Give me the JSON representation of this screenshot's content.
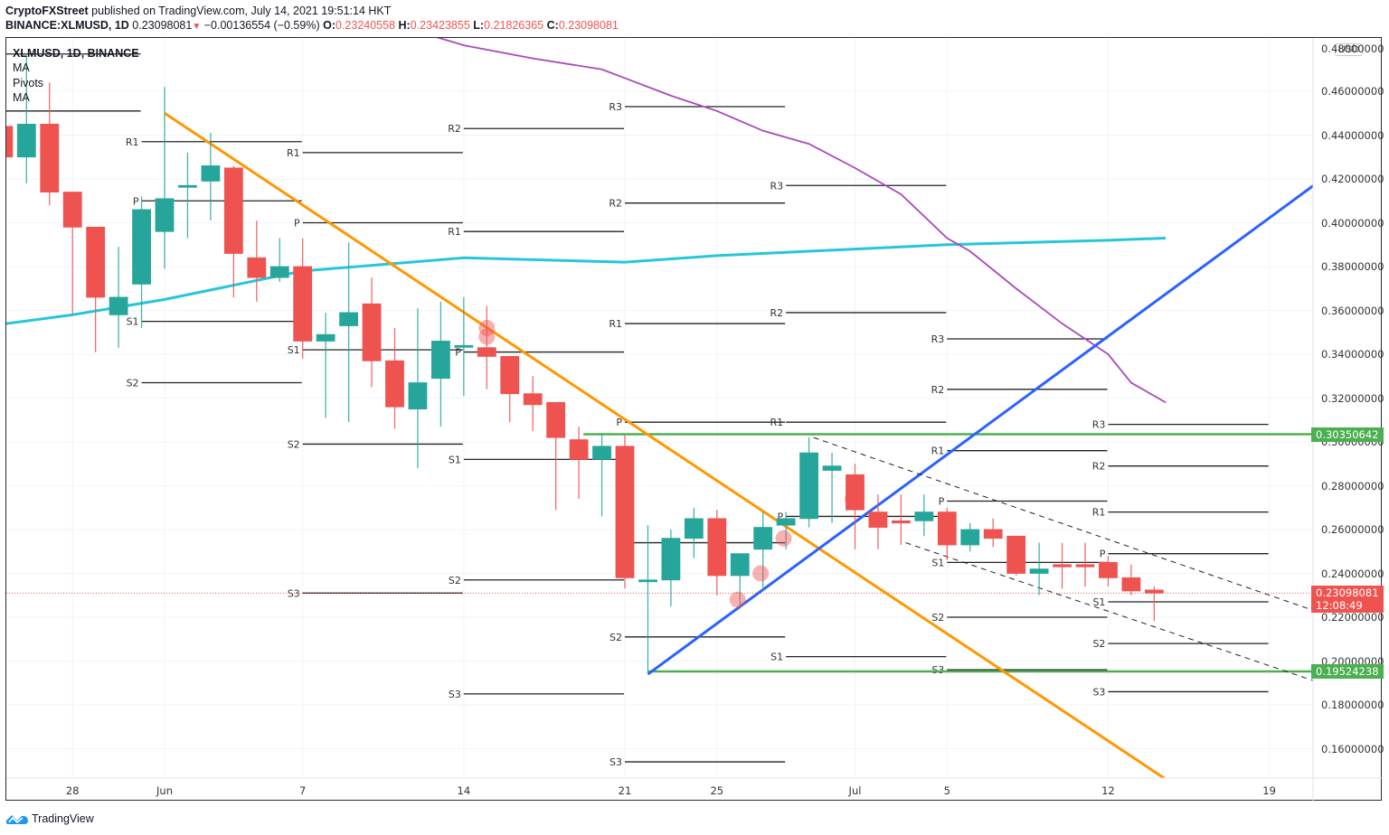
{
  "header": {
    "publisher": "CryptoFXStreet",
    "published_text": "published on TradingView.com, July 14, 2021 19:51:14 HKT",
    "symbol_line": "BINANCE:XLMUSD, 1D",
    "last_price": "0.23098081",
    "change": "−0.00136554 (−0.59%)",
    "open_label": "O:",
    "open": "0.23240558",
    "high_label": "H:",
    "high": "0.23423855",
    "low_label": "L:",
    "low": "0.21826365",
    "close_label": "C:",
    "close": "0.23098081"
  },
  "legend": {
    "title": "XLMUSD, 1D, BINANCE",
    "indicators": [
      "MA",
      "Pivots",
      "MA"
    ]
  },
  "currency_badge": "USD",
  "price_tags": {
    "resistance": "0.30350642",
    "support": "0.19524238",
    "current": "0.23098081",
    "countdown": "12:08:49"
  },
  "footer": {
    "brand": "TradingView"
  },
  "colors": {
    "up": "#26a69a",
    "down": "#ef5350",
    "ma_fast": "#26c6da",
    "ma_slow": "#ab47bc",
    "downtrend": "#ff9800",
    "uptrend": "#2962ff",
    "horizontal": "#4caf50",
    "grid": "#f0f3fa"
  },
  "chart_data": {
    "type": "candlestick",
    "title": "BINANCE:XLMUSD, 1D",
    "xlabel": "",
    "ylabel": "USD",
    "ylim": [
      0.148,
      0.486
    ],
    "grid": true,
    "y_ticks": [
      "0.46000000",
      "0.44000000",
      "0.42000000",
      "0.40000000",
      "0.38000000",
      "0.36000000",
      "0.34000000",
      "0.32000000",
      "0.30000000",
      "0.28000000",
      "0.26000000",
      "0.24000000",
      "0.22000000",
      "0.20000000",
      "0.18000000",
      "0.16000000"
    ],
    "x_ticks": [
      {
        "label": "28",
        "day": -4
      },
      {
        "label": "Jun",
        "day": 0
      },
      {
        "label": "7",
        "day": 6
      },
      {
        "label": "14",
        "day": 13
      },
      {
        "label": "21",
        "day": 20
      },
      {
        "label": "25",
        "day": 24
      },
      {
        "label": "Jul",
        "day": 30
      },
      {
        "label": "5",
        "day": 34
      },
      {
        "label": "12",
        "day": 41
      },
      {
        "label": "19",
        "day": 48
      }
    ],
    "candles": [
      {
        "day": -7,
        "o": 0.444,
        "h": 0.452,
        "l": 0.42,
        "c": 0.43
      },
      {
        "day": -6,
        "o": 0.43,
        "h": 0.476,
        "l": 0.418,
        "c": 0.445
      },
      {
        "day": -5,
        "o": 0.445,
        "h": 0.464,
        "l": 0.408,
        "c": 0.414
      },
      {
        "day": -4,
        "o": 0.414,
        "h": 0.404,
        "l": 0.358,
        "c": 0.398
      },
      {
        "day": -3,
        "o": 0.398,
        "h": 0.398,
        "l": 0.341,
        "c": 0.366
      },
      {
        "day": -2,
        "o": 0.358,
        "h": 0.389,
        "l": 0.343,
        "c": 0.366
      },
      {
        "day": -1,
        "o": 0.372,
        "h": 0.412,
        "l": 0.352,
        "c": 0.406
      },
      {
        "day": 0,
        "o": 0.396,
        "h": 0.462,
        "l": 0.379,
        "c": 0.411
      },
      {
        "day": 1,
        "o": 0.417,
        "h": 0.432,
        "l": 0.393,
        "c": 0.417
      },
      {
        "day": 2,
        "o": 0.419,
        "h": 0.441,
        "l": 0.401,
        "c": 0.426
      },
      {
        "day": 3,
        "o": 0.425,
        "h": 0.426,
        "l": 0.366,
        "c": 0.386
      },
      {
        "day": 4,
        "o": 0.384,
        "h": 0.401,
        "l": 0.364,
        "c": 0.375
      },
      {
        "day": 5,
        "o": 0.375,
        "h": 0.393,
        "l": 0.373,
        "c": 0.38
      },
      {
        "day": 6,
        "o": 0.38,
        "h": 0.393,
        "l": 0.338,
        "c": 0.346
      },
      {
        "day": 7,
        "o": 0.346,
        "h": 0.359,
        "l": 0.311,
        "c": 0.349
      },
      {
        "day": 8,
        "o": 0.353,
        "h": 0.391,
        "l": 0.309,
        "c": 0.359
      },
      {
        "day": 9,
        "o": 0.363,
        "h": 0.375,
        "l": 0.325,
        "c": 0.337
      },
      {
        "day": 10,
        "o": 0.337,
        "h": 0.352,
        "l": 0.306,
        "c": 0.316
      },
      {
        "day": 11,
        "o": 0.315,
        "h": 0.361,
        "l": 0.288,
        "c": 0.327
      },
      {
        "day": 12,
        "o": 0.329,
        "h": 0.364,
        "l": 0.307,
        "c": 0.346
      },
      {
        "day": 13,
        "o": 0.344,
        "h": 0.366,
        "l": 0.321,
        "c": 0.344
      },
      {
        "day": 14,
        "o": 0.343,
        "h": 0.362,
        "l": 0.324,
        "c": 0.339
      },
      {
        "day": 15,
        "o": 0.339,
        "h": 0.338,
        "l": 0.309,
        "c": 0.322
      },
      {
        "day": 16,
        "o": 0.322,
        "h": 0.33,
        "l": 0.305,
        "c": 0.317
      },
      {
        "day": 17,
        "o": 0.318,
        "h": 0.318,
        "l": 0.269,
        "c": 0.302
      },
      {
        "day": 18,
        "o": 0.301,
        "h": 0.307,
        "l": 0.274,
        "c": 0.292
      },
      {
        "day": 19,
        "o": 0.292,
        "h": 0.304,
        "l": 0.266,
        "c": 0.298
      },
      {
        "day": 20,
        "o": 0.298,
        "h": 0.303,
        "l": 0.233,
        "c": 0.238
      },
      {
        "day": 21,
        "o": 0.237,
        "h": 0.262,
        "l": 0.195,
        "c": 0.237
      },
      {
        "day": 22,
        "o": 0.237,
        "h": 0.26,
        "l": 0.225,
        "c": 0.256
      },
      {
        "day": 23,
        "o": 0.256,
        "h": 0.27,
        "l": 0.247,
        "c": 0.265
      },
      {
        "day": 24,
        "o": 0.265,
        "h": 0.269,
        "l": 0.23,
        "c": 0.239
      },
      {
        "day": 25,
        "o": 0.239,
        "h": 0.249,
        "l": 0.224,
        "c": 0.249
      },
      {
        "day": 26,
        "o": 0.251,
        "h": 0.268,
        "l": 0.232,
        "c": 0.261
      },
      {
        "day": 27,
        "o": 0.262,
        "h": 0.268,
        "l": 0.251,
        "c": 0.265
      },
      {
        "day": 28,
        "o": 0.265,
        "h": 0.302,
        "l": 0.261,
        "c": 0.295
      },
      {
        "day": 29,
        "o": 0.287,
        "h": 0.295,
        "l": 0.263,
        "c": 0.289
      },
      {
        "day": 30,
        "o": 0.285,
        "h": 0.29,
        "l": 0.251,
        "c": 0.269
      },
      {
        "day": 31,
        "o": 0.268,
        "h": 0.276,
        "l": 0.251,
        "c": 0.261
      },
      {
        "day": 32,
        "o": 0.264,
        "h": 0.276,
        "l": 0.253,
        "c": 0.263
      },
      {
        "day": 33,
        "o": 0.264,
        "h": 0.276,
        "l": 0.257,
        "c": 0.268
      },
      {
        "day": 34,
        "o": 0.268,
        "h": 0.27,
        "l": 0.246,
        "c": 0.253
      },
      {
        "day": 35,
        "o": 0.253,
        "h": 0.263,
        "l": 0.25,
        "c": 0.26
      },
      {
        "day": 36,
        "o": 0.26,
        "h": 0.265,
        "l": 0.252,
        "c": 0.256
      },
      {
        "day": 37,
        "o": 0.257,
        "h": 0.256,
        "l": 0.239,
        "c": 0.24
      },
      {
        "day": 38,
        "o": 0.24,
        "h": 0.254,
        "l": 0.23,
        "c": 0.242
      },
      {
        "day": 39,
        "o": 0.244,
        "h": 0.254,
        "l": 0.233,
        "c": 0.243
      },
      {
        "day": 40,
        "o": 0.244,
        "h": 0.254,
        "l": 0.234,
        "c": 0.243
      },
      {
        "day": 41,
        "o": 0.245,
        "h": 0.248,
        "l": 0.234,
        "c": 0.238
      },
      {
        "day": 42,
        "o": 0.238,
        "h": 0.244,
        "l": 0.23,
        "c": 0.232
      },
      {
        "day": 43,
        "o": 0.2324,
        "h": 0.2342,
        "l": 0.2183,
        "c": 0.231
      }
    ],
    "ma_fast": {
      "name": "MA",
      "points": [
        [
          -8.3,
          0.352
        ],
        [
          -4,
          0.358
        ],
        [
          0,
          0.365
        ],
        [
          6,
          0.378
        ],
        [
          13,
          0.384
        ],
        [
          20,
          0.382
        ],
        [
          24,
          0.385
        ],
        [
          30,
          0.388
        ],
        [
          34,
          0.39
        ],
        [
          41,
          0.392
        ],
        [
          43.5,
          0.393
        ]
      ]
    },
    "ma_slow": {
      "name": "MA",
      "points": [
        [
          11.4,
          0.486
        ],
        [
          13,
          0.481
        ],
        [
          16,
          0.475
        ],
        [
          19,
          0.47
        ],
        [
          20,
          0.466
        ],
        [
          22,
          0.458
        ],
        [
          24,
          0.451
        ],
        [
          26,
          0.442
        ],
        [
          28,
          0.436
        ],
        [
          30,
          0.425
        ],
        [
          32,
          0.413
        ],
        [
          34,
          0.393
        ],
        [
          35,
          0.387
        ],
        [
          37,
          0.37
        ],
        [
          39,
          0.354
        ],
        [
          41,
          0.34
        ],
        [
          42,
          0.327
        ],
        [
          43.5,
          0.318
        ]
      ]
    },
    "pivots": [
      {
        "from": -7,
        "to": -1,
        "levels": {
          "R1": 0.477,
          "P": 0.451
        }
      },
      {
        "from": -1,
        "to": 6,
        "levels": {
          "R1": 0.437,
          "P": 0.41,
          "S1": 0.355,
          "S2": 0.327
        }
      },
      {
        "from": 6,
        "to": 13,
        "levels": {
          "R1": 0.432,
          "P": 0.4,
          "S1": 0.342,
          "S2": 0.299,
          "S3": 0.231
        }
      },
      {
        "from": 13,
        "to": 20,
        "levels": {
          "R2": 0.443,
          "R1": 0.396,
          "P": 0.341,
          "S1": 0.292,
          "S2": 0.237,
          "S3": 0.185
        }
      },
      {
        "from": 20,
        "to": 27,
        "levels": {
          "R3": 0.453,
          "R2": 0.409,
          "R1": 0.354,
          "P": 0.309,
          "S": 0.254,
          "S2": 0.211,
          "S3": 0.154
        }
      },
      {
        "from": 27,
        "to": 34,
        "levels": {
          "R3": 0.417,
          "R2": 0.359,
          "R1": 0.309,
          "P": 0.266,
          "S1": 0.202
        }
      },
      {
        "from": 34,
        "to": 41,
        "levels": {
          "R3": 0.347,
          "R2": 0.324,
          "R1": 0.296,
          "P": 0.273,
          "S1": 0.245,
          "S2": 0.22,
          "S3": 0.196
        }
      },
      {
        "from": 41,
        "to": 48,
        "levels": {
          "R3": 0.308,
          "R2": 0.289,
          "R1": 0.268,
          "P": 0.249,
          "S1": 0.227,
          "S2": 0.208,
          "S3": 0.186
        }
      }
    ],
    "trendlines": [
      {
        "name": "downtrend",
        "color": "#ff9800",
        "from": [
          0,
          0.45
        ],
        "to": [
          43.8,
          0.144
        ]
      },
      {
        "name": "uptrend",
        "color": "#2962ff",
        "from": [
          21,
          0.194
        ],
        "to": [
          50.7,
          0.423
        ]
      },
      {
        "name": "channel-top",
        "dashed": true,
        "from": [
          28.2,
          0.302
        ],
        "to": [
          50.5,
          0.221
        ]
      },
      {
        "name": "channel-bottom",
        "dashed": true,
        "from": [
          32.2,
          0.254
        ],
        "to": [
          50.5,
          0.189
        ]
      }
    ],
    "horizontals": [
      {
        "name": "resistance",
        "value": 0.30350642,
        "from": 18.2
      },
      {
        "name": "support",
        "value": 0.19524238,
        "from": 21
      }
    ],
    "markers": [
      [
        14,
        0.348
      ],
      [
        14,
        0.352
      ],
      [
        24.9,
        0.228
      ],
      [
        25.9,
        0.24
      ],
      [
        26.9,
        0.256
      ],
      [
        29.9,
        0.274
      ]
    ],
    "last_price_line": 0.23098081
  }
}
